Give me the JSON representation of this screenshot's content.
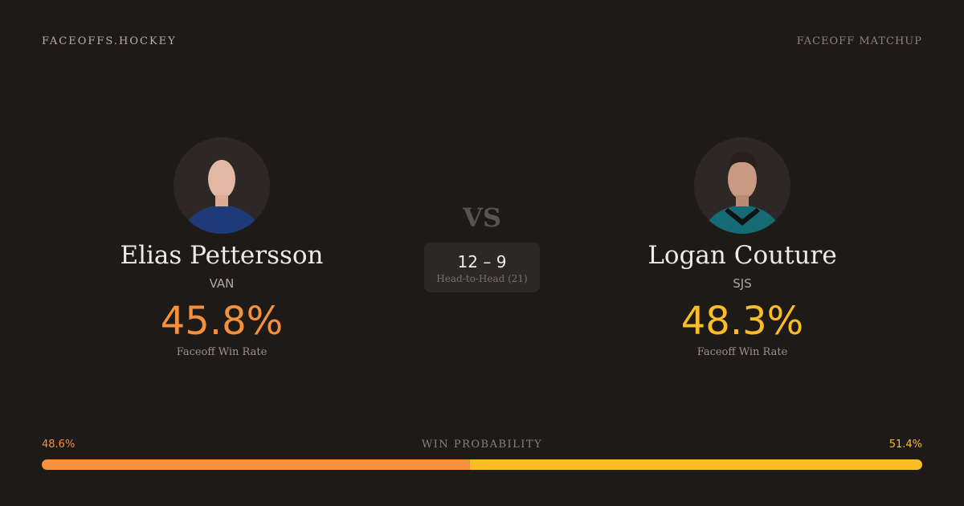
{
  "header": {
    "brand": "FACEOFFS.HOCKEY",
    "section": "FACEOFF MATCHUP"
  },
  "players": [
    {
      "name": "Elias Pettersson",
      "team": "VAN",
      "win_rate": "45.8%",
      "win_rate_label": "Faceoff Win Rate",
      "color": "#f5913d"
    },
    {
      "name": "Logan Couture",
      "team": "SJS",
      "win_rate": "48.3%",
      "win_rate_label": "Faceoff Win Rate",
      "color": "#f9bd26"
    }
  ],
  "versus": {
    "label": "VS",
    "record": "12 – 9",
    "record_label": "Head-to-Head (21)"
  },
  "win_probability": {
    "label": "WIN PROBABILITY",
    "values": [
      48.6,
      51.4
    ],
    "value_labels": [
      "48.6%",
      "51.4%"
    ]
  }
}
